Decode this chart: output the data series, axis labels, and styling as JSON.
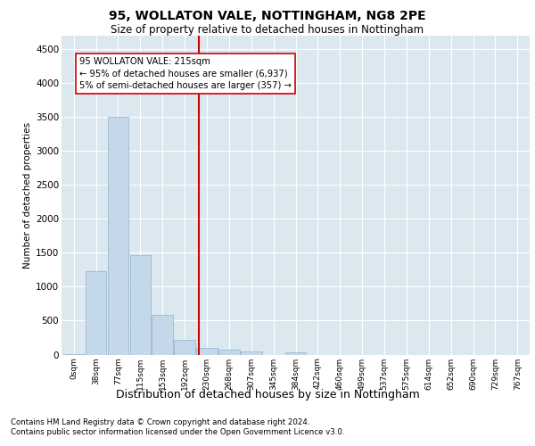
{
  "title1": "95, WOLLATON VALE, NOTTINGHAM, NG8 2PE",
  "title2": "Size of property relative to detached houses in Nottingham",
  "xlabel": "Distribution of detached houses by size in Nottingham",
  "ylabel": "Number of detached properties",
  "bins": [
    "0sqm",
    "38sqm",
    "77sqm",
    "115sqm",
    "153sqm",
    "192sqm",
    "230sqm",
    "268sqm",
    "307sqm",
    "345sqm",
    "384sqm",
    "422sqm",
    "460sqm",
    "499sqm",
    "537sqm",
    "575sqm",
    "614sqm",
    "652sqm",
    "690sqm",
    "729sqm",
    "767sqm"
  ],
  "bar_heights": [
    8,
    1230,
    3500,
    1470,
    580,
    220,
    105,
    70,
    45,
    0,
    28,
    0,
    0,
    0,
    0,
    0,
    0,
    0,
    0,
    0,
    0
  ],
  "bar_color": "#c5d8ea",
  "bar_edgecolor": "#8fb0cc",
  "vline_color": "#cc0000",
  "annotation_text": "95 WOLLATON VALE: 215sqm\n← 95% of detached houses are smaller (6,937)\n5% of semi-detached houses are larger (357) →",
  "annotation_box_edgecolor": "#cc0000",
  "ylim_max": 4700,
  "yticks": [
    0,
    500,
    1000,
    1500,
    2000,
    2500,
    3000,
    3500,
    4000,
    4500
  ],
  "footer1": "Contains HM Land Registry data © Crown copyright and database right 2024.",
  "footer2": "Contains public sector information licensed under the Open Government Licence v3.0.",
  "bg_color": "#dce8f0",
  "property_sqm": 215,
  "bin_width": 38
}
